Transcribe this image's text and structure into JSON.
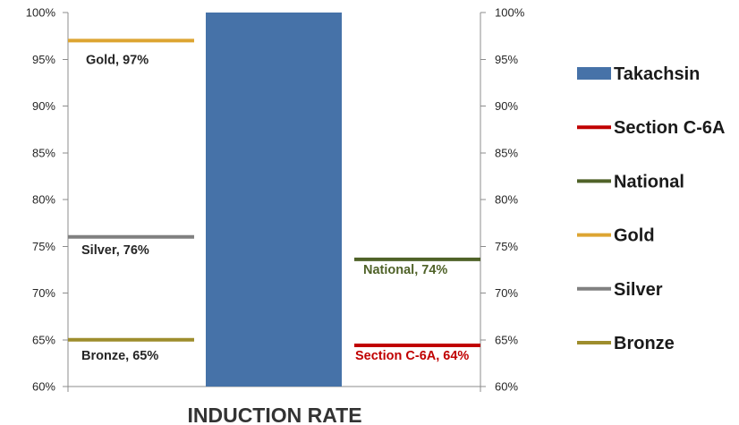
{
  "chart_data": {
    "type": "bar",
    "xlabel": "INDUCTION RATE",
    "ylim": [
      60,
      100
    ],
    "y_ticks": [
      100,
      95,
      90,
      85,
      80,
      75,
      70,
      65,
      60
    ],
    "y_tick_labels": [
      "100%",
      "95%",
      "90%",
      "85%",
      "80%",
      "75%",
      "70%",
      "65%",
      "60%"
    ],
    "y2_tick_labels": [
      "100%",
      "95%",
      "90%",
      "85%",
      "80%",
      "75%",
      "70%",
      "65%",
      "60%"
    ],
    "grid": false,
    "legend_position": "right",
    "series": [
      {
        "name": "Takachsin",
        "mark": "bar",
        "value": 100,
        "color": "#4672A8"
      },
      {
        "name": "Section C-6A",
        "mark": "line",
        "value": 64.4,
        "data_label": "Section C-6A, 64%",
        "color": "#C00000",
        "label_color": "#C00000"
      },
      {
        "name": "National",
        "mark": "line",
        "value": 73.6,
        "data_label": "National, 74%",
        "color": "#4F6228",
        "label_color": "#4F6228"
      },
      {
        "name": "Gold",
        "mark": "line",
        "value": 97,
        "data_label": "Gold, 97%",
        "color": "#DDA532",
        "label_color": "#262626"
      },
      {
        "name": "Silver",
        "mark": "line",
        "value": 76,
        "data_label": "Silver, 76%",
        "color": "#808080",
        "label_color": "#262626"
      },
      {
        "name": "Bronze",
        "mark": "line",
        "value": 65,
        "data_label": "Bronze, 65%",
        "color": "#9E8D2D",
        "label_color": "#262626"
      }
    ]
  }
}
